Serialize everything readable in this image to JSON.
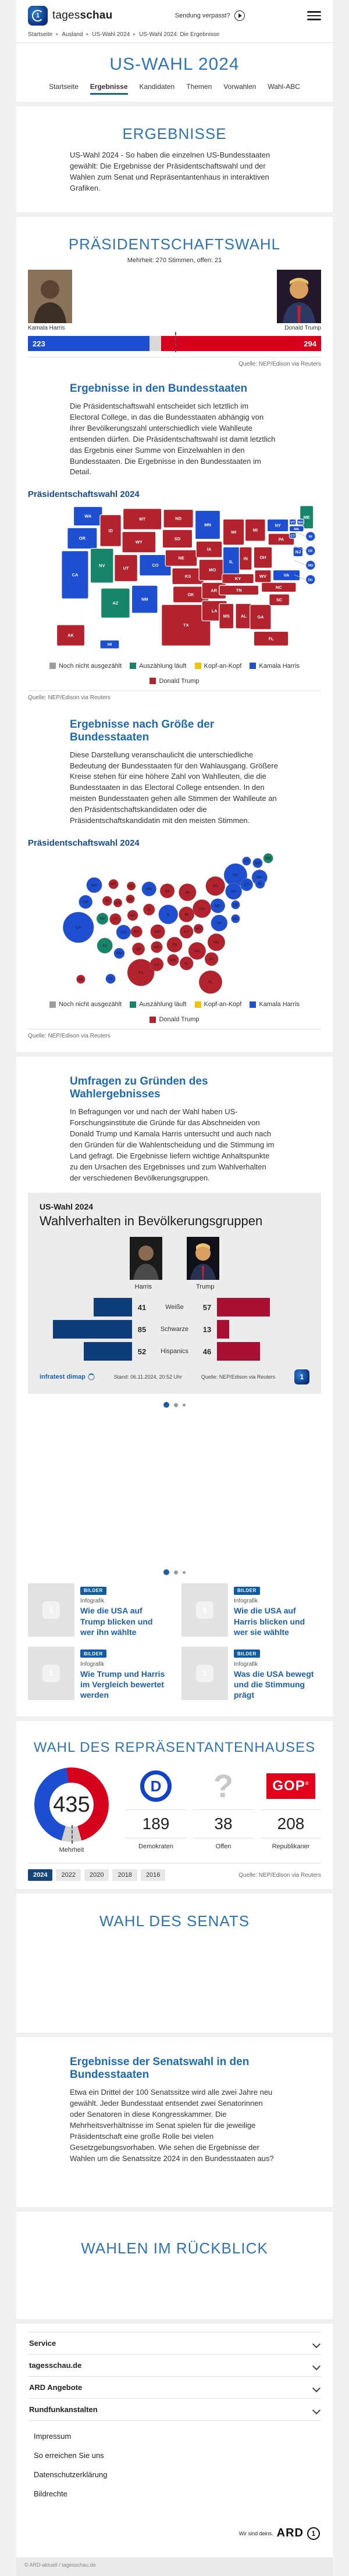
{
  "colors": {
    "harris": "#1d4fd0",
    "trump": "#b2232d",
    "counting": "#17856a",
    "open_gray": "#9d9d9d",
    "head_to_head": "#f0c400",
    "bar_blue": "#1d4ed2",
    "bar_red": "#d6001c",
    "accent_blue": "#1c5fa8"
  },
  "header": {
    "logo_light": "tages",
    "logo_bold": "schau",
    "logo_one": "1",
    "sendung_verpasst": "Sendung verpasst?",
    "breadcrumb": [
      "Startseite",
      "Ausland",
      "US-Wahl 2024",
      "US-Wahl 2024: Die Ergebnisse"
    ]
  },
  "hero": {
    "title": "US-WAHL 2024",
    "tabs": [
      "Startseite",
      "Ergebnisse",
      "Kandidaten",
      "Themen",
      "Vorwahlen",
      "Wahl-ABC"
    ],
    "active_tab": "Ergebnisse"
  },
  "intro": {
    "heading": "ERGEBNISSE",
    "text": "US-Wahl 2024 - So haben die einzelnen US-Bundesstaaten gewählt: Die Ergebnisse der Präsidentschaftswahl und der Wahlen zum Senat und Repräsentantenhaus in interaktiven Grafiken."
  },
  "president": {
    "heading": "PRÄSIDENTSCHAFTSWAHL",
    "majority_note": "Mehrheit: 270 Stimmen, offen: 21",
    "harris_name": "Kamala Harris",
    "trump_name": "Donald Trump",
    "harris_votes": 223,
    "open_votes": 21,
    "trump_votes": 294,
    "majority": 270,
    "total": 538,
    "source": "Quelle: NEP/Edison via Reuters"
  },
  "states_section": {
    "heading": "Ergebnisse in den Bundesstaaten",
    "text": "Die Präsidentschaftswahl entscheidet sich letztlich im Electoral College, in das die Bundesstaaten abhängig von ihrer Bevölkerungszahl unterschiedlich viele Wahlleute entsenden dürfen. Die Präsidentschaftswahl ist damit letztlich das Ergebnis einer Summe von Einzelwahlen in den Bundesstaaten. Die Ergebnisse in den Bundesstaaten im Detail.",
    "chart_label": "Präsidentschaftswahl 2024",
    "source": "Quelle: NEP/Edison via Reuters"
  },
  "size_section": {
    "heading": "Ergebnisse nach Größe der Bundesstaaten",
    "text": "Diese Darstellung veranschaulicht die unterschiedliche Bedeutung der Bundesstaaten für den Wahlausgang. Größere Kreise stehen für eine höhere Zahl von Wahlleuten, die die Bundesstaaten in das Electoral College entsenden. In den meisten Bundesstaaten gehen alle Stimmen der Wahlleute an den Präsidentschaftskandidaten oder die Präsidentschaftskandidatin mit den meisten Stimmen.",
    "chart_label": "Präsidentschaftswahl 2024",
    "source": "Quelle: NEP/Edison via Reuters"
  },
  "legend": [
    {
      "label": "Noch nicht ausgezählt",
      "color": "#9d9d9d"
    },
    {
      "label": "Auszählung läuft",
      "color": "#17856a"
    },
    {
      "label": "Kopf-an-Kopf",
      "color": "#f0c400"
    },
    {
      "label": "Kamala Harris",
      "color": "#1d4fd0"
    },
    {
      "label": "Donald Trump",
      "color": "#b2232d"
    }
  ],
  "chart_data": [
    {
      "type": "bar",
      "title": "Electoral College Stand",
      "categories": [
        "Kamala Harris",
        "offen",
        "Donald Trump"
      ],
      "values": [
        223,
        21,
        294
      ],
      "annotations": [
        "Mehrheit: 270"
      ]
    },
    {
      "type": "bar",
      "title": "Wahlverhalten in Bevölkerungsgruppen",
      "categories": [
        "Weiße",
        "Schwarze",
        "Hispanics"
      ],
      "series": [
        {
          "name": "Harris",
          "values": [
            41,
            85,
            52
          ]
        },
        {
          "name": "Trump",
          "values": [
            57,
            13,
            46
          ]
        }
      ]
    },
    {
      "type": "pie",
      "title": "Wahl des Repräsentantenhauses",
      "categories": [
        "Demokraten",
        "Offen",
        "Republikaner"
      ],
      "values": [
        189,
        38,
        208
      ],
      "annotations": [
        "435",
        "Mehrheit"
      ]
    }
  ],
  "map_states": [
    {
      "code": "WA",
      "result": "harris",
      "ev": 12,
      "tile": [
        95,
        8,
        60,
        40
      ],
      "bubble": [
        138,
        70
      ]
    },
    {
      "code": "OR",
      "result": "harris",
      "ev": 8,
      "tile": [
        82,
        52,
        62,
        44
      ],
      "bubble": [
        120,
        105
      ]
    },
    {
      "code": "CA",
      "result": "harris",
      "ev": 54,
      "tile": [
        70,
        100,
        56,
        100
      ],
      "bubble": [
        105,
        158
      ]
    },
    {
      "code": "NV",
      "result": "counting",
      "ev": 6,
      "tile": [
        130,
        95,
        48,
        72
      ],
      "bubble": [
        155,
        140
      ]
    },
    {
      "code": "ID",
      "result": "trump",
      "ev": 4,
      "tile": [
        150,
        25,
        44,
        66
      ],
      "bubble": [
        165,
        103
      ]
    },
    {
      "code": "MT",
      "result": "trump",
      "ev": 4,
      "tile": [
        198,
        12,
        80,
        44
      ],
      "bubble": [
        178,
        68
      ]
    },
    {
      "code": "WY",
      "result": "trump",
      "ev": 3,
      "tile": [
        196,
        60,
        70,
        44
      ],
      "bubble": [
        187,
        107
      ]
    },
    {
      "code": "UT",
      "result": "trump",
      "ev": 6,
      "tile": [
        180,
        108,
        48,
        56
      ],
      "bubble": [
        182,
        141
      ]
    },
    {
      "code": "AZ",
      "result": "counting",
      "ev": 11,
      "tile": [
        152,
        178,
        60,
        62
      ],
      "bubble": [
        160,
        196
      ]
    },
    {
      "code": "NM",
      "result": "harris",
      "ev": 5,
      "tile": [
        216,
        172,
        54,
        58
      ],
      "bubble": [
        190,
        212
      ]
    },
    {
      "code": "CO",
      "result": "harris",
      "ev": 10,
      "tile": [
        232,
        108,
        66,
        44
      ],
      "bubble": [
        199,
        168
      ]
    },
    {
      "code": "ND",
      "result": "trump",
      "ev": 3,
      "tile": [
        282,
        14,
        62,
        38
      ],
      "bubble": [
        215,
        72
      ]
    },
    {
      "code": "SD",
      "result": "trump",
      "ev": 3,
      "tile": [
        280,
        56,
        62,
        38
      ],
      "bubble": [
        213,
        99
      ]
    },
    {
      "code": "NE",
      "result": "trump",
      "ev": 5,
      "tile": [
        286,
        98,
        66,
        34
      ],
      "bubble": [
        218,
        133
      ]
    },
    {
      "code": "KS",
      "result": "trump",
      "ev": 6,
      "tile": [
        300,
        136,
        66,
        34
      ],
      "bubble": [
        226,
        167
      ]
    },
    {
      "code": "OK",
      "result": "trump",
      "ev": 7,
      "tile": [
        302,
        174,
        74,
        34
      ],
      "bubble": [
        230,
        203
      ]
    },
    {
      "code": "TX",
      "result": "trump",
      "ev": 40,
      "tile": [
        278,
        212,
        102,
        86
      ],
      "bubble": [
        235,
        252
      ]
    },
    {
      "code": "MN",
      "result": "harris",
      "ev": 10,
      "tile": [
        348,
        16,
        52,
        60
      ],
      "bubble": [
        252,
        78
      ]
    },
    {
      "code": "IA",
      "result": "trump",
      "ev": 6,
      "tile": [
        350,
        80,
        54,
        34
      ],
      "bubble": [
        252,
        121
      ]
    },
    {
      "code": "MO",
      "result": "trump",
      "ev": 10,
      "tile": [
        356,
        118,
        56,
        44
      ],
      "bubble": [
        270,
        167
      ]
    },
    {
      "code": "AR",
      "result": "trump",
      "ev": 6,
      "tile": [
        362,
        166,
        50,
        34
      ],
      "bubble": [
        268,
        199
      ]
    },
    {
      "code": "LA",
      "result": "trump",
      "ev": 8,
      "tile": [
        362,
        204,
        52,
        42
      ],
      "bubble": [
        268,
        235
      ]
    },
    {
      "code": "WI",
      "result": "trump",
      "ev": 10,
      "tile": [
        406,
        34,
        44,
        54
      ],
      "bubble": [
        290,
        82
      ]
    },
    {
      "code": "IL",
      "result": "harris",
      "ev": 19,
      "tile": [
        406,
        92,
        34,
        62
      ],
      "bubble": [
        292,
        131
      ]
    },
    {
      "code": "MS",
      "result": "trump",
      "ev": 6,
      "tile": [
        398,
        210,
        30,
        52
      ],
      "bubble": [
        302,
        226
      ]
    },
    {
      "code": "AL",
      "result": "trump",
      "ev": 9,
      "tile": [
        432,
        210,
        34,
        52
      ],
      "bubble": [
        330,
        233
      ]
    },
    {
      "code": "GA",
      "result": "trump",
      "ev": 16,
      "tile": [
        462,
        212,
        44,
        52
      ],
      "bubble": [
        352,
        207
      ]
    },
    {
      "code": "FL",
      "result": "trump",
      "ev": 30,
      "tile": [
        470,
        268,
        72,
        30
      ],
      "bubble": [
        380,
        272
      ]
    },
    {
      "code": "TN",
      "result": "trump",
      "ev": 11,
      "tile": [
        398,
        172,
        82,
        20
      ],
      "bubble": [
        305,
        194
      ]
    },
    {
      "code": "KY",
      "result": "trump",
      "ev": 8,
      "tile": [
        404,
        148,
        66,
        20
      ],
      "bubble": [
        330,
        167
      ]
    },
    {
      "code": "IN",
      "result": "trump",
      "ev": 11,
      "tile": [
        440,
        92,
        26,
        48
      ],
      "bubble": [
        330,
        131
      ]
    },
    {
      "code": "OH",
      "result": "trump",
      "ev": 17,
      "tile": [
        470,
        92,
        38,
        44
      ],
      "bubble": [
        362,
        119
      ]
    },
    {
      "code": "MI",
      "result": "trump",
      "ev": 15,
      "tile": [
        452,
        34,
        42,
        46
      ],
      "bubble": [
        332,
        85
      ]
    },
    {
      "code": "WV",
      "result": "trump",
      "ev": 4,
      "tile": [
        472,
        140,
        34,
        26
      ],
      "bubble": [
        355,
        161
      ]
    },
    {
      "code": "VA",
      "result": "harris",
      "ev": 13,
      "tile": [
        510,
        140,
        56,
        22
      ],
      "bubble": [
        398,
        149
      ]
    },
    {
      "code": "PA",
      "result": "trump",
      "ev": 19,
      "tile": [
        500,
        64,
        54,
        24
      ],
      "bubble": [
        390,
        72
      ]
    },
    {
      "code": "NY",
      "result": "harris",
      "ev": 28,
      "tile": [
        498,
        34,
        44,
        26
      ],
      "bubble": [
        432,
        49
      ]
    },
    {
      "code": "NC",
      "result": "trump",
      "ev": 16,
      "tile": [
        486,
        166,
        72,
        20
      ],
      "bubble": [
        392,
        189
      ]
    },
    {
      "code": "SC",
      "result": "trump",
      "ev": 9,
      "tile": [
        502,
        190,
        42,
        24
      ],
      "bubble": [
        382,
        224
      ]
    },
    {
      "code": "NJ",
      "result": "harris",
      "ev": 14,
      "tile": [
        552,
        92,
        20,
        20
      ],
      "bubble": [
        428,
        83
      ]
    },
    {
      "code": "ME",
      "result": "counting",
      "ev": 4,
      "tile": [
        566,
        6,
        28,
        48
      ],
      "bubble": [
        500,
        14
      ]
    },
    {
      "code": "VT",
      "result": "harris",
      "ev": 3,
      "tile": [
        544,
        34,
        14,
        12
      ],
      "bubble": [
        455,
        20
      ]
    },
    {
      "code": "NH",
      "result": "harris",
      "ev": 4,
      "tile": [
        560,
        34,
        14,
        12
      ],
      "bubble": [
        478,
        24
      ]
    },
    {
      "code": "MA",
      "result": "harris",
      "ev": 11,
      "tile": [
        544,
        48,
        30,
        12
      ],
      "bubble": [
        482,
        54
      ]
    },
    {
      "code": "CT",
      "result": "harris",
      "ev": 7,
      "tile": [
        544,
        62,
        14,
        12
      ],
      "bubble": [
        455,
        69
      ]
    },
    {
      "code": "RI",
      "result": "harris",
      "ev": 4,
      "circle": [
        588,
        70
      ],
      "bubble": [
        483,
        67
      ]
    },
    {
      "code": "DE",
      "result": "harris",
      "ev": 3,
      "circle": [
        588,
        100
      ],
      "bubble": [
        432,
        111
      ]
    },
    {
      "code": "MD",
      "result": "harris",
      "ev": 10,
      "circle": [
        588,
        130
      ],
      "bubble": [
        395,
        113
      ]
    },
    {
      "code": "DC",
      "result": "harris",
      "ev": 3,
      "circle": [
        588,
        160
      ],
      "bubble": [
        432,
        140
      ]
    },
    {
      "code": "AK",
      "result": "trump",
      "ev": 3,
      "tile": [
        60,
        254,
        58,
        44
      ],
      "bubble": [
        110,
        266
      ]
    },
    {
      "code": "HI",
      "result": "harris",
      "ev": 4,
      "tile": [
        150,
        286,
        40,
        18
      ],
      "bubble": [
        172,
        265
      ]
    }
  ],
  "umfragen": {
    "heading": "Umfragen zu Gründen des Wahlergebnisses",
    "text": "In Befragungen vor und nach der Wahl haben US-Forschungsinstitute die Gründe für das Abschneiden von Donald Trump und Kamala Harris untersucht und auch nach den Gründen für die Wahlentscheidung und die Stimmung im Land gefragt. Die Ergebnisse liefern wichtige Anhaltspunkte zu den Ursachen des Ergebnisses und zum Wahlverhalten der verschiedenen Bevölkerungsgruppen."
  },
  "demografie": {
    "kicker": "US-Wahl 2024",
    "title": "Wahlverhalten in Bevölkerungsgruppen",
    "left_label": "Harris",
    "right_label": "Trump",
    "rows": [
      {
        "group": "Weiße",
        "harris": 41,
        "trump": 57
      },
      {
        "group": "Schwarze",
        "harris": 85,
        "trump": 13
      },
      {
        "group": "Hispanics",
        "harris": 52,
        "trump": 46
      }
    ],
    "brand": "infratest dimap",
    "stand": "Stand:  06.11.2024, 20:52 Uhr",
    "source": "Quelle: NEP/Edison via Reuters"
  },
  "teasers": [
    {
      "badge": "BILDER",
      "kicker": "Infografik",
      "title": "Wie die USA auf Trump blicken und wer ihn wählte"
    },
    {
      "badge": "BILDER",
      "kicker": "Infografik",
      "title": "Wie die USA auf Harris blicken und wer sie wählte"
    },
    {
      "badge": "BILDER",
      "kicker": "Infografik",
      "title": "Wie Trump und Harris im Vergleich bewertet werden"
    },
    {
      "badge": "BILDER",
      "kicker": "Infografik",
      "title": "Was die USA bewegt und die Stimmung prägt"
    }
  ],
  "house": {
    "heading": "WAHL DES REPRÄSENTANTENHAUSES",
    "total": "435",
    "majority_label": "Mehrheit",
    "dem_seats": "189",
    "dem_name": "Demokraten",
    "open_seats": "38",
    "open_name": "Offen",
    "rep_seats": "208",
    "rep_name": "Republikaner",
    "dem_letter": "D",
    "open_glyph": "?",
    "rep_logo": "GOP",
    "years": [
      "2024",
      "2022",
      "2020",
      "2018",
      "2016"
    ],
    "active_year": "2024",
    "source": "Quelle: NEP/Edison via Reuters"
  },
  "senate": {
    "heading": "WAHL DES SENATS"
  },
  "senate_results": {
    "heading": "Ergebnisse der Senatswahl in den Bundesstaaten",
    "text": "Etwa ein Drittel der 100 Senatssitze wird alle zwei Jahre neu gewählt. Jeder Bundesstaat entsendet zwei Senatorinnen oder Senatoren in diese Kongresskammer. Die Mehrheitsverhältnisse im Senat spielen für die jeweilige Präsidentschaft eine große Rolle bei vielen Gesetzgebungsvorhaben. Wie sehen die Ergebnisse der Wahlen um die Senatssitze 2024 in den Bundesstaaten aus?"
  },
  "retrospect": {
    "heading": "WAHLEN IM RÜCKBLICK"
  },
  "footer": {
    "accordions": [
      "Service",
      "tagesschau.de",
      "ARD Angebote",
      "Rundfunkanstalten"
    ],
    "links": [
      "Impressum",
      "So erreichen Sie uns",
      "Datenschutzerklärung",
      "Bildrechte"
    ],
    "ard_claim": "Wir sind deins.",
    "ard_brand": "ARD",
    "copyright": "© ARD-aktuell / tagesschau.de"
  }
}
